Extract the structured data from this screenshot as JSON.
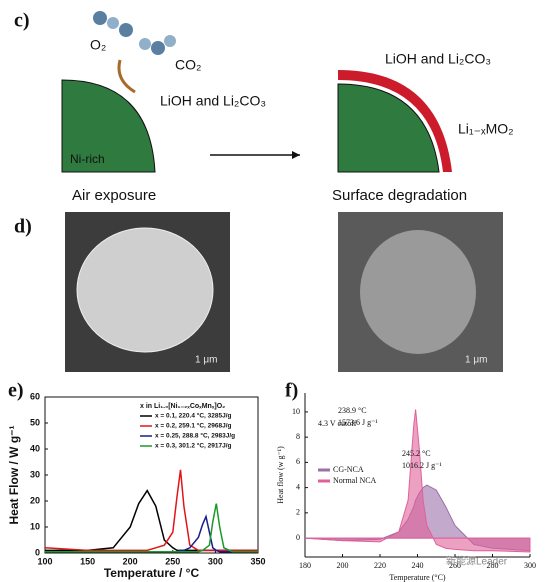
{
  "panel_c": {
    "label": "c)",
    "o2": "O₂",
    "co2": "CO₂",
    "left_product": "LiOH and Li₂CO₃",
    "ni_rich": "Ni-rich",
    "left_caption": "Air exposure",
    "right_product": "LiOH and Li₂CO₃",
    "right_bulk": "Li₁₋ₓMO₂",
    "right_caption": "Surface degradation"
  },
  "panel_d": {
    "label": "d)",
    "left_scale": "1 μm",
    "right_scale": "1 μm"
  },
  "panel_labels": {
    "e": "e)",
    "f": "f)"
  },
  "chart_data": [
    {
      "type": "line",
      "xlabel": "Temperature  /  °C",
      "ylabel": "Heat Flow  /  W g⁻¹",
      "legend_title": "x in Li₁.₀[Ni₁₋₂ₓCoₓMnₓ]O₂",
      "xlim": [
        100,
        350
      ],
      "xticks": [
        100,
        150,
        200,
        250,
        300,
        350
      ],
      "ylim": [
        0,
        60
      ],
      "yticks": [
        0,
        10,
        20,
        30,
        40,
        50,
        60
      ],
      "x": [
        100,
        150,
        180,
        200,
        210,
        220,
        230,
        240,
        250,
        255,
        259,
        263,
        270,
        280,
        285,
        289,
        293,
        297,
        301,
        305,
        310,
        320,
        350
      ],
      "series": [
        {
          "name": "x = 0.1,   220.4 °C, 3285J/g",
          "color": "#000000",
          "values": [
            1,
            1,
            2,
            10,
            19,
            24,
            18,
            5,
            2,
            1,
            1,
            1,
            1,
            1,
            1,
            1,
            1,
            1,
            1,
            1,
            1,
            1,
            1
          ]
        },
        {
          "name": "x = 0.2,   259.1 °C, 2968J/g",
          "color": "#e0151b",
          "values": [
            2,
            1,
            1,
            1,
            1,
            1,
            2,
            3,
            8,
            22,
            32,
            18,
            3,
            1,
            1,
            1,
            1,
            1,
            1,
            1,
            1,
            1,
            1
          ]
        },
        {
          "name": "x = 0.25, 288.8 °C, 2983J/g",
          "color": "#1c1c8c",
          "values": [
            0.5,
            0.5,
            0.5,
            0.5,
            0.5,
            0.5,
            0.5,
            0.5,
            0.5,
            0.5,
            1,
            1,
            2,
            6,
            11,
            14,
            8,
            2,
            1,
            0.5,
            0.5,
            0.5,
            0.5
          ]
        },
        {
          "name": "x = 0.3,   301.2 °C, 2917J/g",
          "color": "#1a9a2a",
          "values": [
            0.5,
            0.5,
            0.5,
            0.5,
            0.5,
            0.5,
            0.5,
            0.5,
            0.5,
            0.5,
            0.5,
            0.5,
            0.5,
            0.5,
            1,
            2,
            3,
            12,
            19,
            10,
            2,
            0.5,
            0.5
          ]
        }
      ]
    },
    {
      "type": "area",
      "xlabel": "Temperature (°C)",
      "ylabel": "Heat flow (w g⁻¹)",
      "xlim": [
        180,
        300
      ],
      "xticks": [
        180,
        200,
        220,
        240,
        260,
        280,
        300
      ],
      "ylim": [
        -1.5,
        11.5
      ],
      "yticks": [
        0,
        2,
        4,
        6,
        8,
        10
      ],
      "x": [
        180,
        200,
        220,
        230,
        235,
        238,
        239,
        241,
        243,
        245,
        250,
        255,
        260,
        270,
        280,
        300
      ],
      "annotations": [
        "4.3 V cutoff",
        "238.9 °C",
        "1573.6 J g⁻¹",
        "245.2 °C",
        "1016.2 J g⁻¹"
      ],
      "watermark": "新能源Leader",
      "series": [
        {
          "name": "CG-NCA",
          "color": "#9b6fa8",
          "values": [
            0,
            -0.2,
            -0.1,
            0.5,
            1.5,
            2.5,
            3,
            3.6,
            4,
            4.2,
            3.8,
            2.5,
            1,
            -0.5,
            -0.8,
            -1
          ]
        },
        {
          "name": "Normal NCA",
          "color": "#e0609a",
          "values": [
            0,
            -0.2,
            -0.3,
            0.5,
            3,
            9,
            10.2,
            7,
            3,
            1,
            -0.5,
            -0.8,
            -0.9,
            -1,
            -1,
            -1.1
          ]
        }
      ]
    }
  ]
}
